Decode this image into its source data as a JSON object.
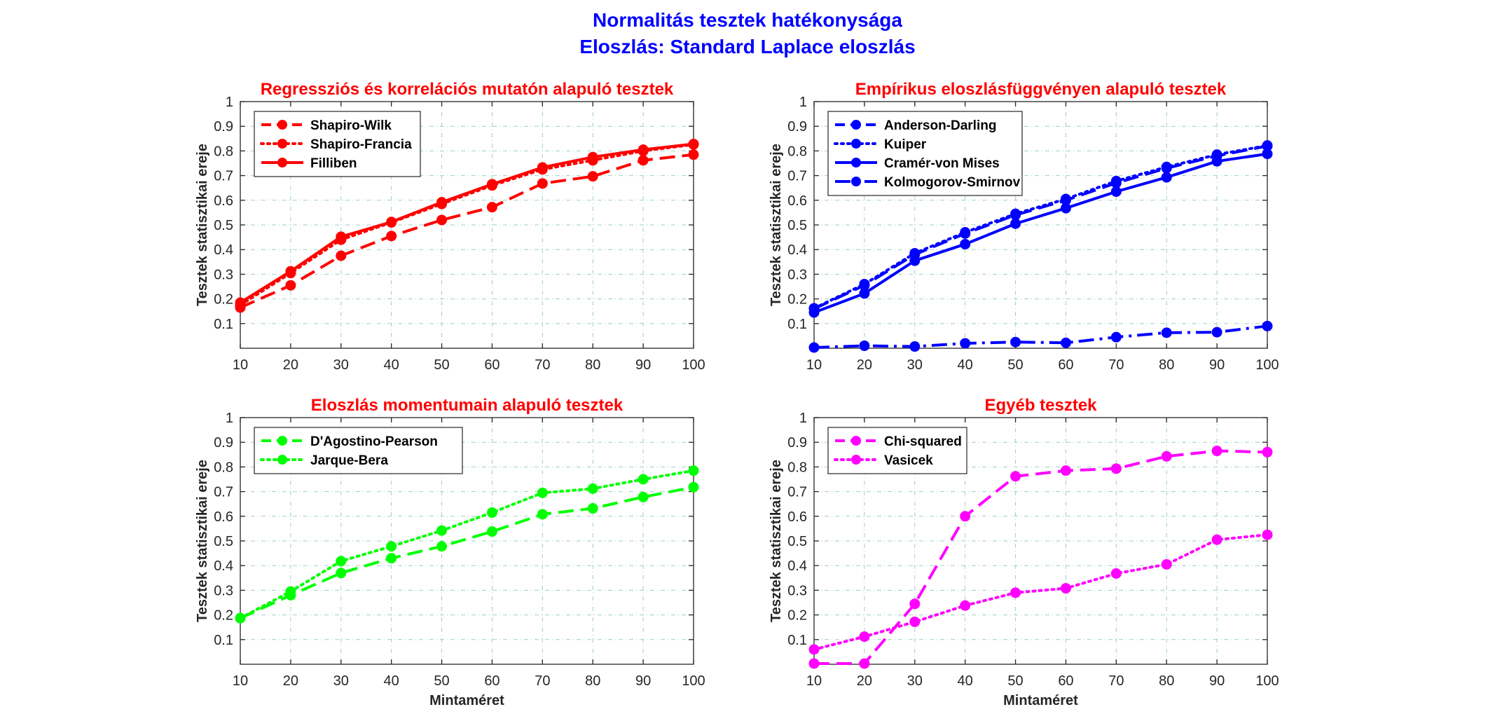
{
  "suptitle": [
    "Normalitás tesztek hatékonysága",
    "Eloszlás: Standard Laplace eloszlás"
  ],
  "colors": {
    "suptitle": "#0000FF",
    "panel_title": "#FF0000",
    "grid": "#9fcfc7"
  },
  "chart_data": [
    {
      "type": "line",
      "title": "Regressziós és korrelációs mutatón alapuló tesztek",
      "xlabel": "",
      "ylabel": "Tesztek statisztikai ereje",
      "xlim": [
        10,
        100
      ],
      "ylim": [
        0,
        1
      ],
      "grid": true,
      "legend_position": "top-left",
      "x": [
        10,
        20,
        30,
        40,
        50,
        60,
        70,
        80,
        90,
        100
      ],
      "x_ticks": [
        "10",
        "20",
        "30",
        "40",
        "50",
        "60",
        "70",
        "80",
        "90",
        "100"
      ],
      "y_ticks": [
        "0.1",
        "0.2",
        "0.3",
        "0.4",
        "0.5",
        "0.6",
        "0.7",
        "0.8",
        "0.9",
        "1"
      ],
      "series": [
        {
          "name": "Shapiro-Wilk",
          "style": "dashed",
          "color": "#FF0000",
          "values": [
            0.165,
            0.255,
            0.375,
            0.455,
            0.52,
            0.572,
            0.668,
            0.697,
            0.762,
            0.785
          ]
        },
        {
          "name": "Shapiro-Francia",
          "style": "dotted",
          "color": "#FF0000",
          "values": [
            0.175,
            0.305,
            0.44,
            0.51,
            0.585,
            0.66,
            0.725,
            0.762,
            0.8,
            0.826
          ]
        },
        {
          "name": "Filliben",
          "style": "solid",
          "color": "#FF0000",
          "values": [
            0.185,
            0.312,
            0.452,
            0.512,
            0.592,
            0.665,
            0.733,
            0.775,
            0.805,
            0.828
          ]
        }
      ]
    },
    {
      "type": "line",
      "title": "Empírikus eloszlásfüggvényen alapuló tesztek",
      "xlabel": "",
      "ylabel": "Tesztek statisztikai ereje",
      "xlim": [
        10,
        100
      ],
      "ylim": [
        0,
        1
      ],
      "grid": true,
      "legend_position": "top-left",
      "x": [
        10,
        20,
        30,
        40,
        50,
        60,
        70,
        80,
        90,
        100
      ],
      "x_ticks": [
        "10",
        "20",
        "30",
        "40",
        "50",
        "60",
        "70",
        "80",
        "90",
        "100"
      ],
      "y_ticks": [
        "0.1",
        "0.2",
        "0.3",
        "0.4",
        "0.5",
        "0.6",
        "0.7",
        "0.8",
        "0.9",
        "1"
      ],
      "series": [
        {
          "name": "Anderson-Darling",
          "style": "dashed",
          "color": "#0000FF",
          "values": [
            0.16,
            0.255,
            0.38,
            0.465,
            0.54,
            0.6,
            0.67,
            0.73,
            0.78,
            0.82
          ]
        },
        {
          "name": "Kuiper",
          "style": "dotted",
          "color": "#0000FF",
          "values": [
            0.162,
            0.26,
            0.385,
            0.47,
            0.545,
            0.605,
            0.678,
            0.735,
            0.785,
            0.822
          ]
        },
        {
          "name": "Cramér-von Mises",
          "style": "solid",
          "color": "#0000FF",
          "values": [
            0.145,
            0.222,
            0.355,
            0.422,
            0.505,
            0.568,
            0.635,
            0.693,
            0.758,
            0.788
          ]
        },
        {
          "name": "Kolmogorov-Smirnov",
          "style": "dashdot",
          "color": "#0000FF",
          "values": [
            0.003,
            0.01,
            0.007,
            0.02,
            0.025,
            0.022,
            0.045,
            0.063,
            0.065,
            0.09
          ]
        }
      ]
    },
    {
      "type": "line",
      "title": "Eloszlás momentumain alapuló tesztek",
      "xlabel": "Mintaméret",
      "ylabel": "Tesztek statisztikai ereje",
      "xlim": [
        10,
        100
      ],
      "ylim": [
        0,
        1
      ],
      "grid": true,
      "legend_position": "top-left",
      "x": [
        10,
        20,
        30,
        40,
        50,
        60,
        70,
        80,
        90,
        100
      ],
      "x_ticks": [
        "10",
        "20",
        "30",
        "40",
        "50",
        "60",
        "70",
        "80",
        "90",
        "100"
      ],
      "y_ticks": [
        "0.1",
        "0.2",
        "0.3",
        "0.4",
        "0.5",
        "0.6",
        "0.7",
        "0.8",
        "0.9",
        "1"
      ],
      "series": [
        {
          "name": "D'Agostino-Pearson",
          "style": "dashed",
          "color": "#00FF00",
          "values": [
            0.187,
            0.28,
            0.37,
            0.43,
            0.478,
            0.538,
            0.608,
            0.632,
            0.678,
            0.718
          ]
        },
        {
          "name": "Jarque-Bera",
          "style": "dotted",
          "color": "#00FF00",
          "values": [
            0.187,
            0.295,
            0.418,
            0.478,
            0.542,
            0.615,
            0.695,
            0.712,
            0.75,
            0.785
          ]
        }
      ]
    },
    {
      "type": "line",
      "title": "Egyéb tesztek",
      "xlabel": "Mintaméret",
      "ylabel": "Tesztek statisztikai ereje",
      "xlim": [
        10,
        100
      ],
      "ylim": [
        0,
        1
      ],
      "grid": true,
      "legend_position": "top-left",
      "x": [
        10,
        20,
        30,
        40,
        50,
        60,
        70,
        80,
        90,
        100
      ],
      "x_ticks": [
        "10",
        "20",
        "30",
        "40",
        "50",
        "60",
        "70",
        "80",
        "90",
        "100"
      ],
      "y_ticks": [
        "0.1",
        "0.2",
        "0.3",
        "0.4",
        "0.5",
        "0.6",
        "0.7",
        "0.8",
        "0.9",
        "1"
      ],
      "series": [
        {
          "name": "Chi-squared",
          "style": "dashed",
          "color": "#FF00FF",
          "values": [
            0.003,
            0.003,
            0.245,
            0.6,
            0.762,
            0.785,
            0.793,
            0.843,
            0.865,
            0.86
          ]
        },
        {
          "name": "Vasicek",
          "style": "dotted",
          "color": "#FF00FF",
          "values": [
            0.06,
            0.112,
            0.172,
            0.238,
            0.29,
            0.308,
            0.368,
            0.405,
            0.505,
            0.525
          ]
        }
      ]
    }
  ]
}
